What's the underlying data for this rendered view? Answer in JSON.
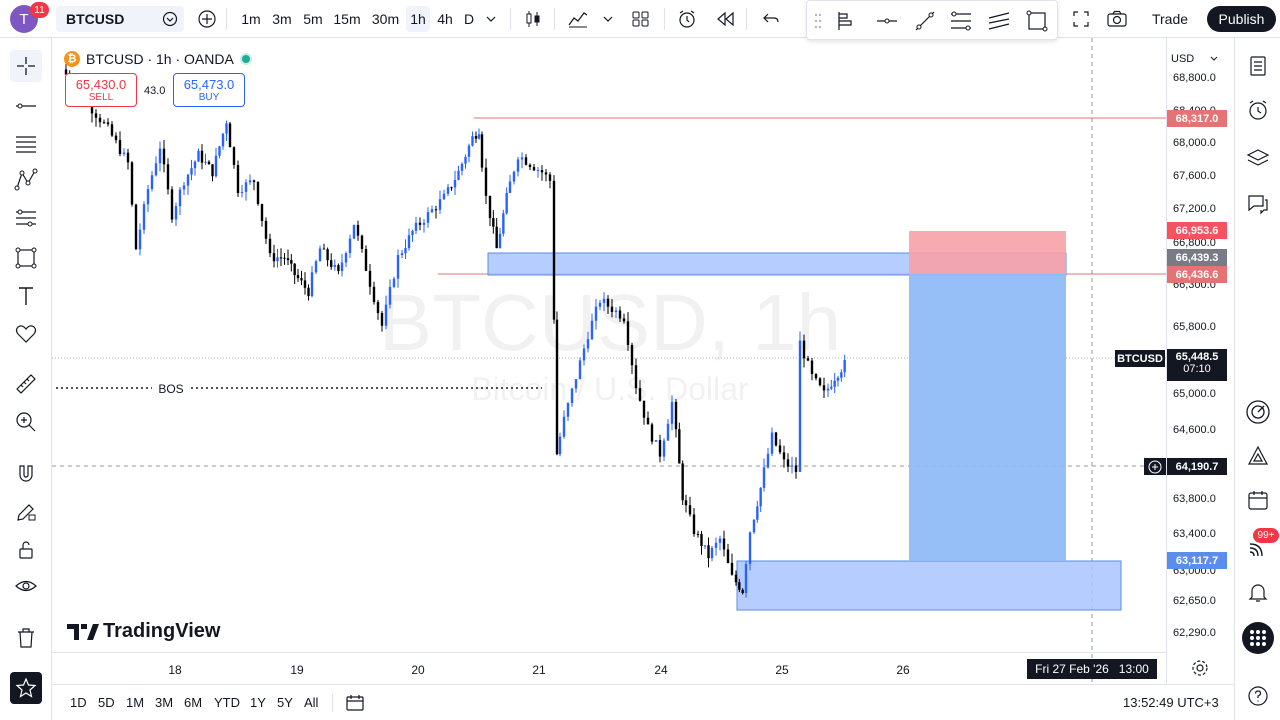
{
  "header": {
    "avatar_letter": "T",
    "notification_count": "11",
    "symbol": "BTCUSD",
    "intervals": [
      "1m",
      "3m",
      "5m",
      "15m",
      "30m",
      "1h",
      "4h",
      "D"
    ],
    "active_interval": "1h",
    "trade_label": "Trade",
    "publish_label": "Publish"
  },
  "legend": {
    "title": "BTCUSD · 1h · OANDA",
    "sell_price": "65,430.0",
    "sell_label": "SELL",
    "spread": "43.0",
    "buy_price": "65,473.0",
    "buy_label": "BUY"
  },
  "watermark": {
    "symbol": "BTCUSD, 1h",
    "description": "Bitcoin / U.S. Dollar"
  },
  "bos_label": "BOS",
  "logo_text": "TradingView",
  "price_axis": {
    "currency": "USD",
    "labels": [
      "68,800.0",
      "68,400.0",
      "68,000.0",
      "67,600.0",
      "67,200.0",
      "66,800.0",
      "66,300.0",
      "65,800.0",
      "65,000.0",
      "64,600.0",
      "63,800.0",
      "63,400.0",
      "63,000.0",
      "62,650.0",
      "62,290.0"
    ],
    "tags": {
      "line_red": "68,317.0",
      "stop": "66,953.6",
      "entry": "66,439.3",
      "line_red2": "66,436.6",
      "current_symbol": "BTCUSD",
      "current_price": "65,448.5",
      "countdown": "07:10",
      "crosshair": "64,190.7",
      "target": "63,117.7"
    }
  },
  "time_axis": {
    "labels": [
      "18",
      "19",
      "20",
      "21",
      "24",
      "25",
      "26"
    ],
    "crosshair": "Fri 27 Feb '26   13:00"
  },
  "bottom": {
    "ranges": [
      "1D",
      "5D",
      "1M",
      "3M",
      "6M",
      "YTD",
      "1Y",
      "5Y",
      "All"
    ],
    "clock": "13:52:49 UTC+3"
  },
  "right_badge": "99+",
  "colors": {
    "up": "#2962ff",
    "down": "#000000",
    "zone": "#a8c4ff",
    "stop_zone": "#f7a1a8",
    "target_zone": "#90bbf7",
    "red_line": "#e57373"
  }
}
